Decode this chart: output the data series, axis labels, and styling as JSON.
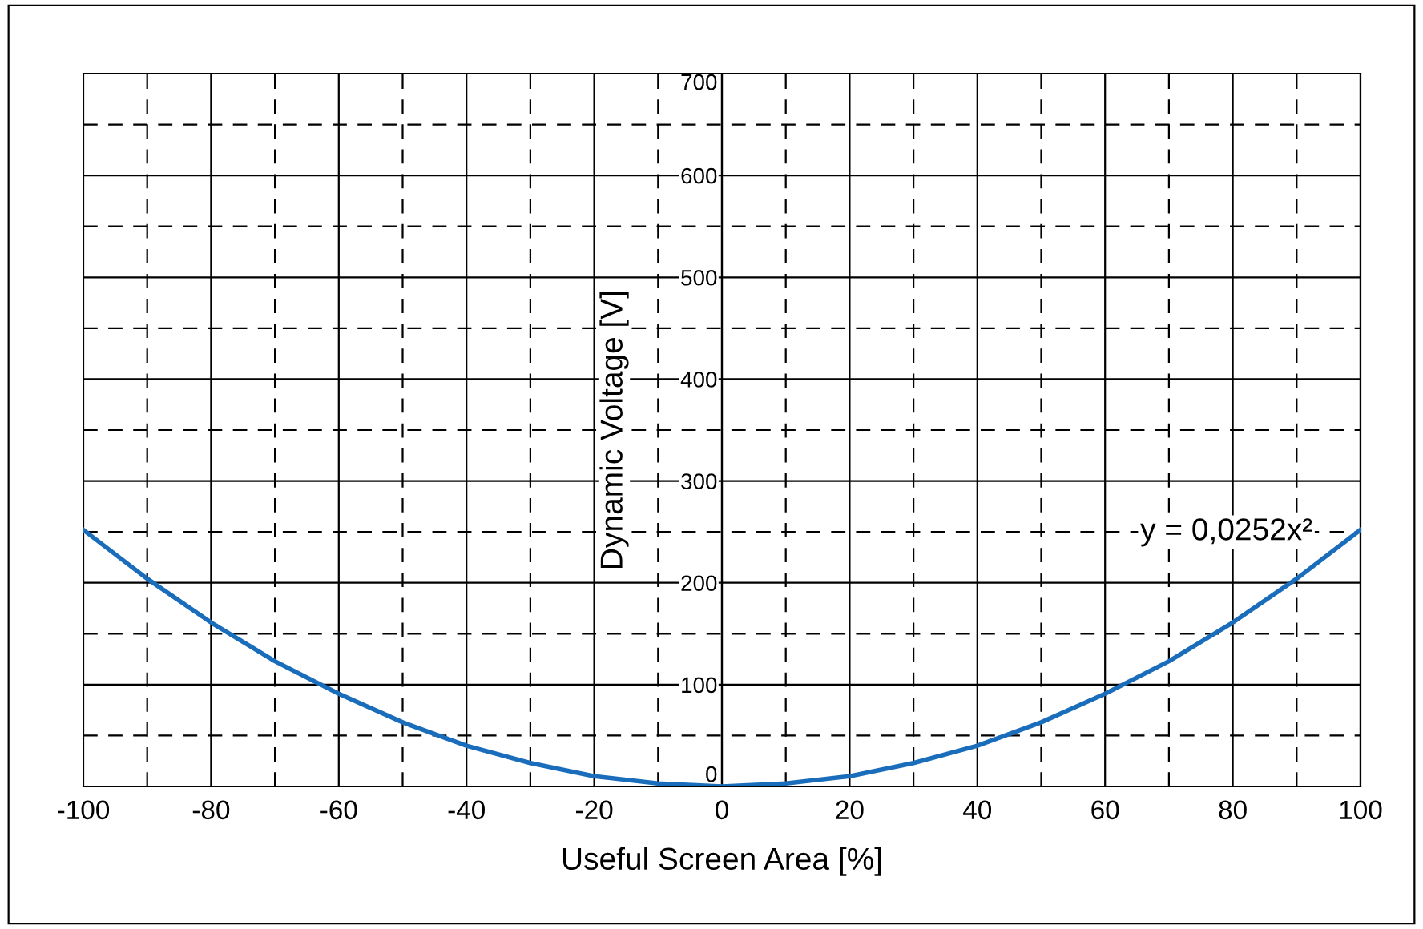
{
  "chart_data": {
    "type": "line",
    "xlabel": "Useful Screen Area [%]",
    "ylabel": "Dynamic Voltage [V]",
    "annotations": [
      "y = 0,0252x²"
    ],
    "x": [
      -100,
      -90,
      -80,
      -70,
      -60,
      -50,
      -40,
      -30,
      -20,
      -10,
      0,
      10,
      20,
      30,
      40,
      50,
      60,
      70,
      80,
      90,
      100
    ],
    "series": [
      {
        "color": "#1a6dbb",
        "values": [
          252,
          204,
          161,
          123,
          91,
          63,
          40,
          23,
          10,
          3,
          0,
          3,
          10,
          23,
          40,
          63,
          91,
          123,
          161,
          204,
          252
        ]
      }
    ],
    "xlim": [
      -100,
      100
    ],
    "ylim": [
      0,
      700
    ],
    "xticks": [
      -100,
      {
        "value": -90,
        "label": null
      },
      -80,
      {
        "value": -70,
        "label": null
      },
      -60,
      {
        "value": -50,
        "label": null
      },
      -40,
      {
        "value": -30,
        "label": null
      },
      -20,
      {
        "value": -10,
        "label": null
      },
      0,
      {
        "value": 10,
        "label": null
      },
      20,
      {
        "value": 30,
        "label": null
      },
      40,
      {
        "value": 50,
        "label": null
      },
      60,
      {
        "value": 70,
        "label": null
      },
      80,
      {
        "value": 90,
        "label": null
      },
      100
    ],
    "yticks": [
      0,
      {
        "value": 50,
        "label": null
      },
      100,
      {
        "value": 150,
        "label": null
      },
      200,
      {
        "value": 250,
        "label": null
      },
      300,
      {
        "value": 350,
        "label": null
      },
      400,
      {
        "value": 450,
        "label": null
      },
      500,
      {
        "value": 550,
        "label": null
      },
      600,
      {
        "value": 650,
        "label": null
      },
      700
    ],
    "grid": true,
    "legend": false,
    "marker": "none",
    "line_style": "solid"
  }
}
